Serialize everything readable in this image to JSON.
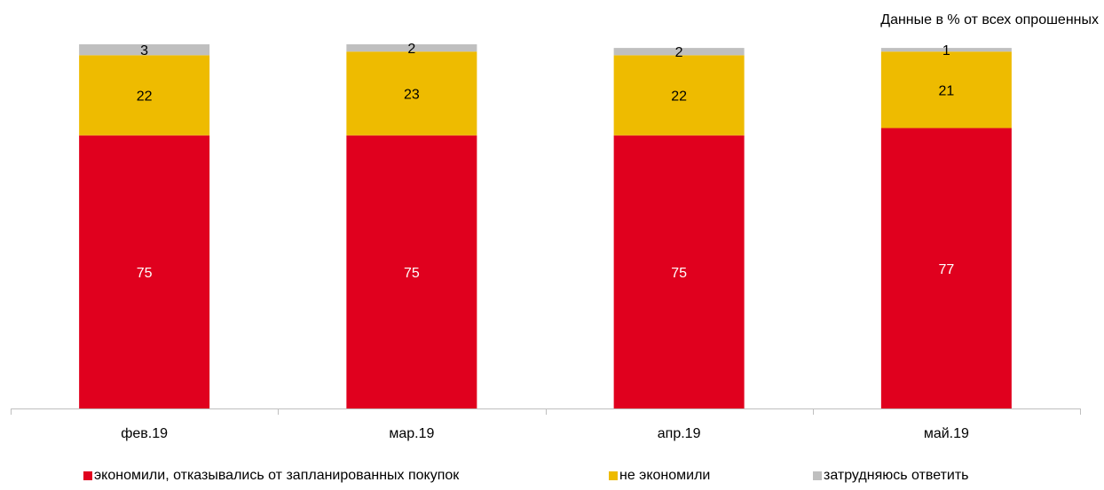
{
  "note": "Данные в % от всех опрошенных",
  "legend": {
    "items": [
      {
        "label": "экономили, отказывались от запланированных покупок",
        "color": "#E0001E"
      },
      {
        "label": "не экономили",
        "color": "#EEBB00"
      },
      {
        "label": "затрудняюсь ответить",
        "color": "#BFBFBF"
      }
    ]
  },
  "chart_data": {
    "type": "bar",
    "stacked": true,
    "categories": [
      "фев.19",
      "мар.19",
      "апр.19",
      "май.19"
    ],
    "series": [
      {
        "name": "экономили, отказывались от запланированных покупок",
        "color": "#E0001E",
        "values": [
          75,
          75,
          75,
          77
        ]
      },
      {
        "name": "не экономили",
        "color": "#EEBB00",
        "values": [
          22,
          23,
          22,
          21
        ]
      },
      {
        "name": "затрудняюсь ответить",
        "color": "#BFBFBF",
        "values": [
          3,
          2,
          2,
          1
        ]
      }
    ],
    "ylim": [
      0,
      100
    ],
    "grid": false,
    "legend_position": "bottom"
  }
}
